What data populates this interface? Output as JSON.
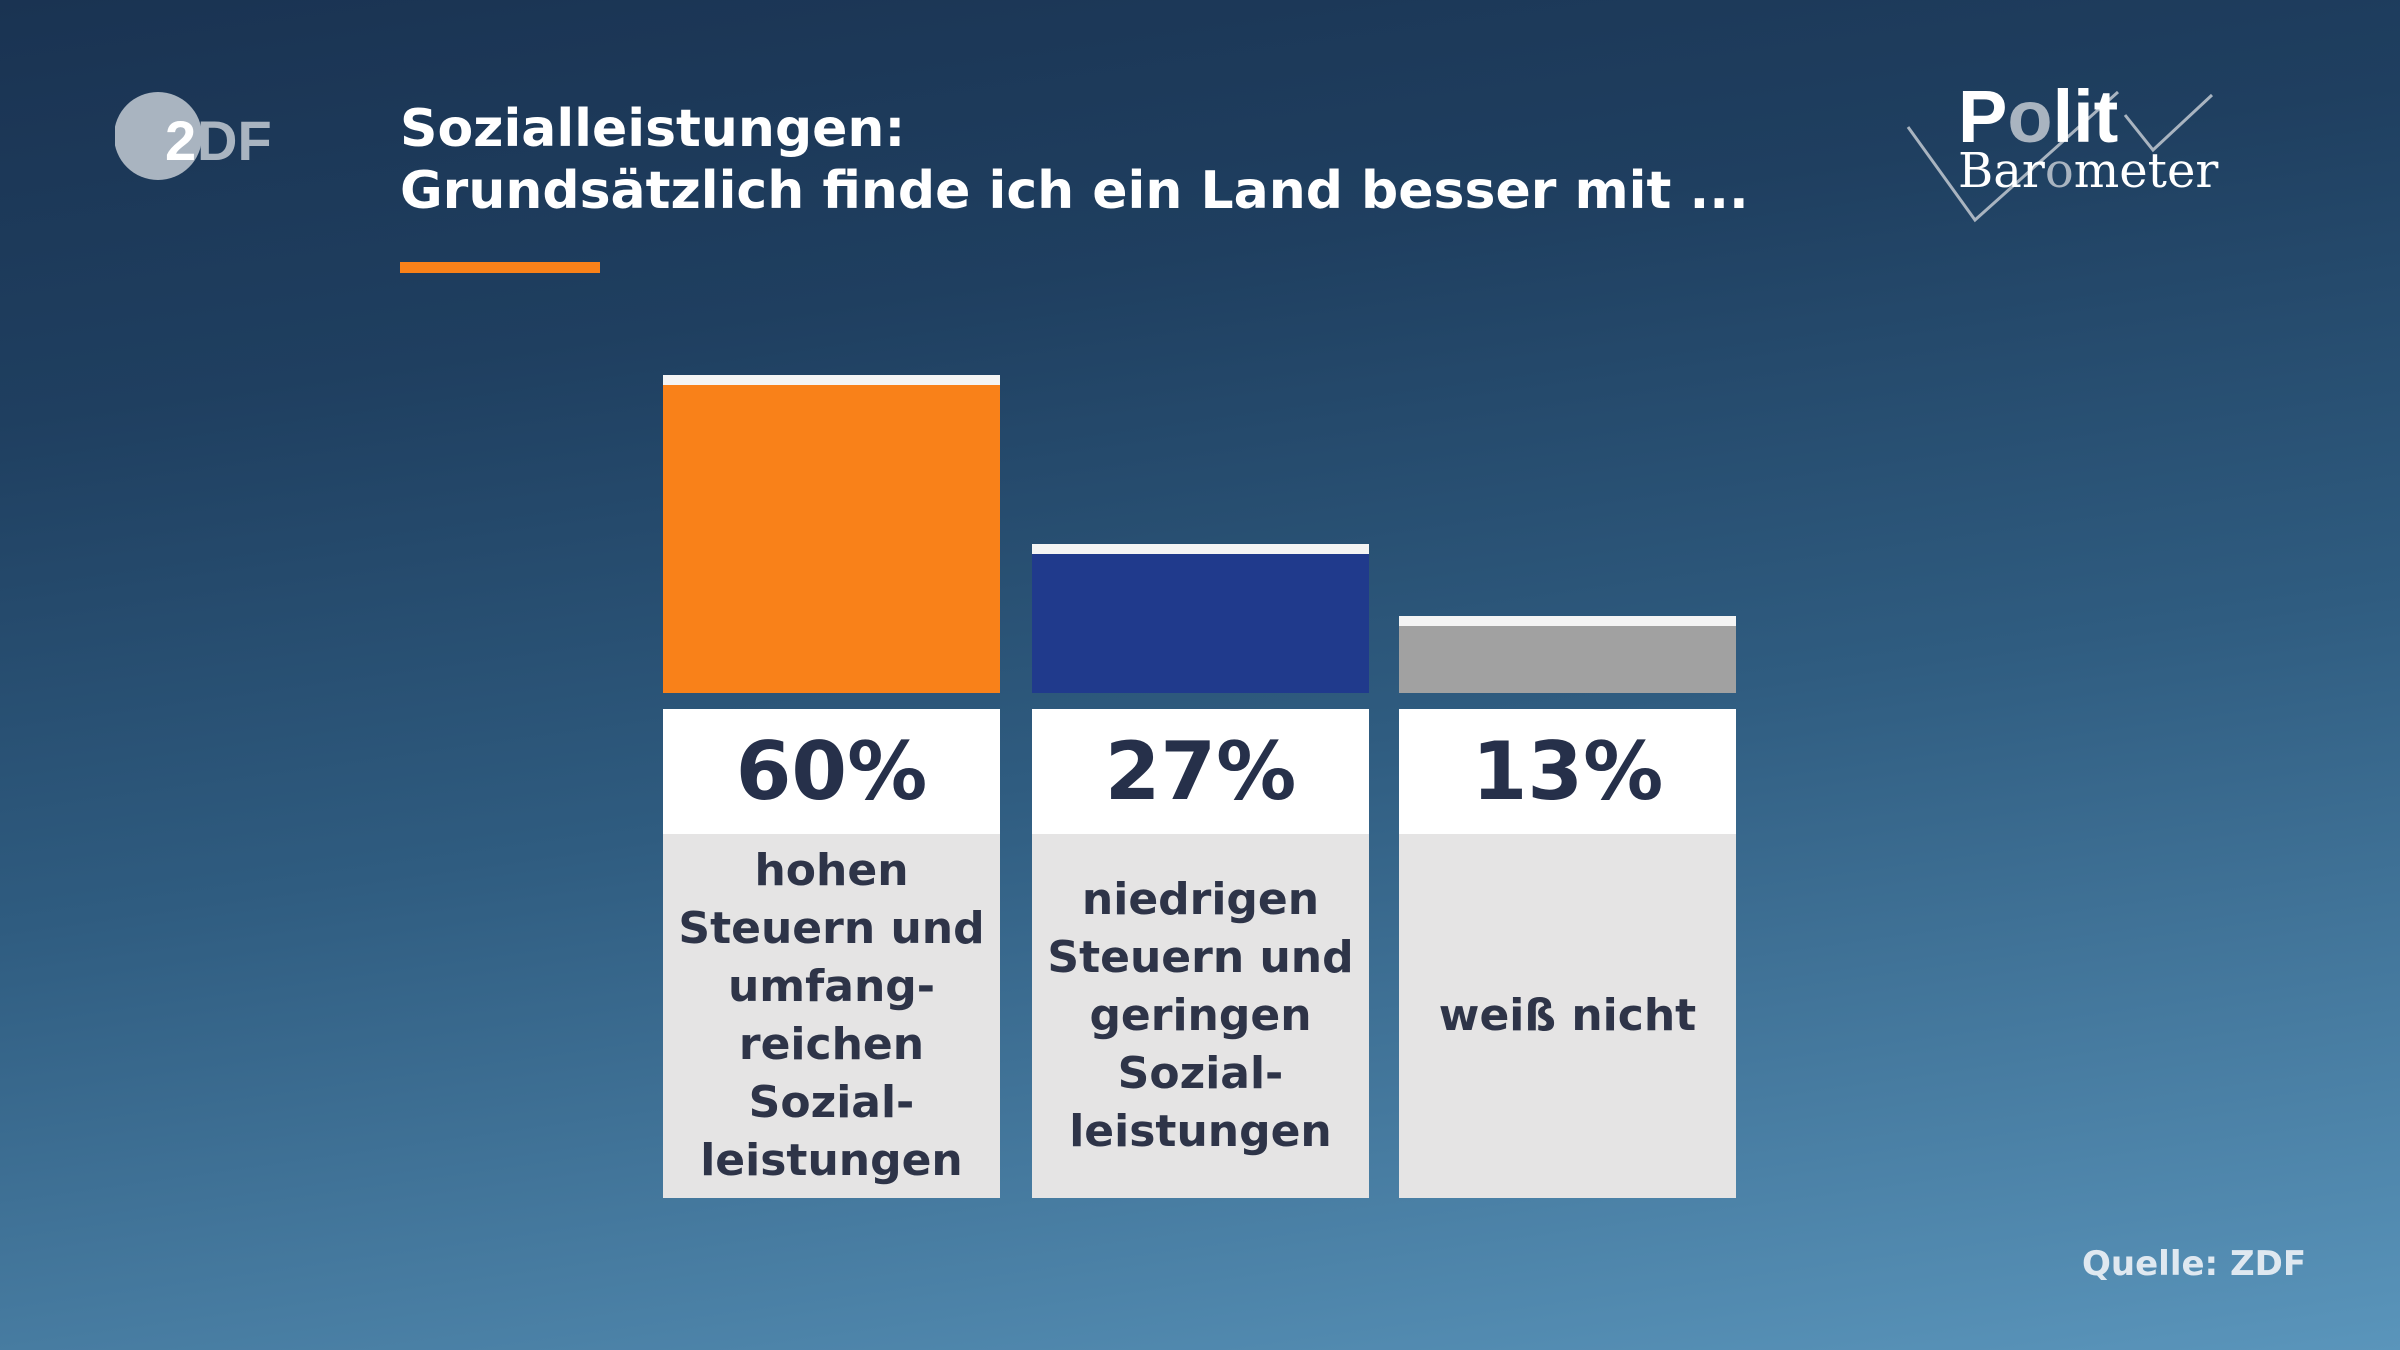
{
  "header": {
    "title_line1": "Sozialleistungen:",
    "title_line2": "Grundsätzlich finde ich ein Land besser mit ..."
  },
  "logos": {
    "broadcaster": "ZDF",
    "program_line1": "Polit",
    "program_line2": "Barometer"
  },
  "source": "Quelle: ZDF",
  "colors": {
    "accent": "#f98119",
    "bar1": "#f98119",
    "bar2": "#203a8c",
    "bar3": "#a1a1a1"
  },
  "chart_data": {
    "type": "bar",
    "title": "Sozialleistungen: Grundsätzlich finde ich ein Land besser mit ...",
    "categories": [
      "hohen Steuern und umfang-reichen Sozial-leistungen",
      "niedrigen Steuern und geringen Sozial-leistungen",
      "weiß nicht"
    ],
    "category_labels": [
      "hohen\nSteuern und\numfang-\nreichen\nSozial-\nleistungen",
      "niedrigen\nSteuern und\ngeringen\nSozial-\nleistungen",
      "weiß nicht"
    ],
    "values": [
      60,
      27,
      13
    ],
    "value_labels": [
      "60%",
      "27%",
      "13%"
    ],
    "unit": "%",
    "ylim": [
      0,
      60
    ],
    "grid": false
  }
}
